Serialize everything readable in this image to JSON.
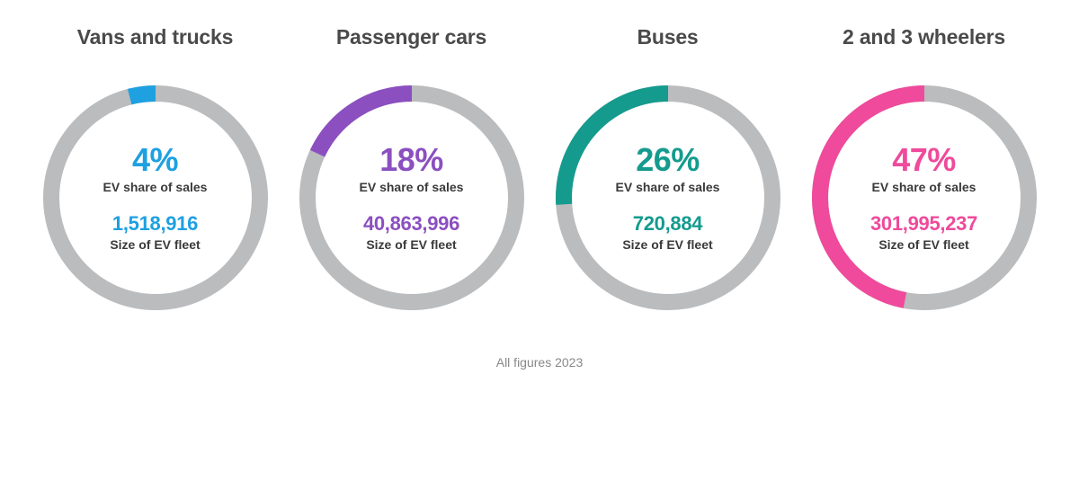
{
  "infographic": {
    "type": "donut-multiples",
    "background_color": "#ffffff",
    "track_color": "#babcbe",
    "title_color": "#4a4a4a",
    "label_color": "#3a3a3a",
    "footnote_color": "#888888",
    "donut_outer_radius": 125,
    "donut_stroke_width": 18,
    "title_fontsize": 23,
    "pct_fontsize": 36,
    "fleet_fontsize": 22,
    "label_fontsize": 14,
    "labels": {
      "share": "EV share of sales",
      "fleet": "Size of EV fleet"
    },
    "items": [
      {
        "title": "Vans and trucks",
        "percent": 4,
        "percent_text": "4%",
        "fleet_text": "1,518,916",
        "accent_color": "#1ea0e1"
      },
      {
        "title": "Passenger cars",
        "percent": 18,
        "percent_text": "18%",
        "fleet_text": "40,863,996",
        "accent_color": "#8b4fc0"
      },
      {
        "title": "Buses",
        "percent": 26,
        "percent_text": "26%",
        "fleet_text": "720,884",
        "accent_color": "#149b8e"
      },
      {
        "title": "2 and 3 wheelers",
        "percent": 47,
        "percent_text": "47%",
        "fleet_text": "301,995,237",
        "accent_color": "#ef4a9b"
      }
    ],
    "footnote": "All figures 2023"
  }
}
